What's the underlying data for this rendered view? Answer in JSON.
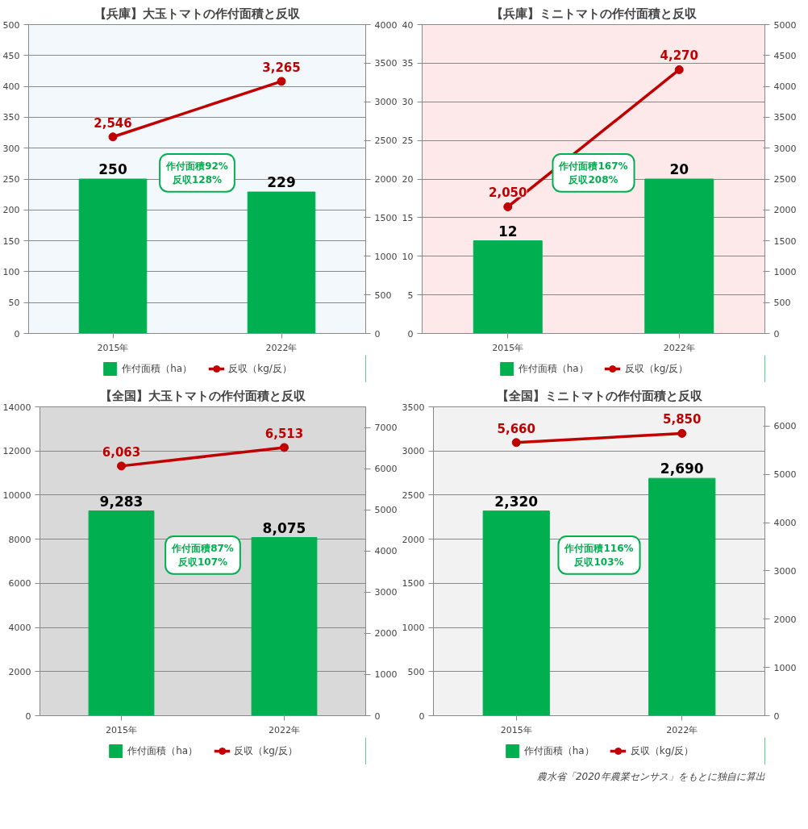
{
  "chart_data": [
    {
      "type": "bar",
      "title": "【兵庫】大玉トマトの作付面積と反収",
      "categories": [
        "2015年",
        "2022年"
      ],
      "series": [
        {
          "name": "作付面積（ha）",
          "color": "#00b050",
          "values": [
            250,
            229
          ],
          "value_labels": [
            "250",
            "229"
          ]
        },
        {
          "name": "反収（kg/反）",
          "type": "line",
          "axis": "y2",
          "color": "#c00000",
          "values": [
            2546,
            3265
          ],
          "value_labels": [
            "2,546",
            "3,265"
          ],
          "marker": "circle"
        }
      ],
      "ylim": [
        0,
        500
      ],
      "yticks": [
        0,
        50,
        100,
        150,
        200,
        250,
        300,
        350,
        400,
        450,
        500
      ],
      "y2lim": [
        0,
        4000
      ],
      "y2ticks": [
        0,
        500,
        1000,
        1500,
        2000,
        2500,
        3000,
        3500,
        4000
      ],
      "grid": "y",
      "legend": "bottom",
      "annotations": [
        "作付面積92%\n反収128%"
      ]
    },
    {
      "type": "bar",
      "title": "【兵庫】ミニトマトの作付面積と反収",
      "categories": [
        "2015年",
        "2022年"
      ],
      "series": [
        {
          "name": "作付面積（ha）",
          "color": "#00b050",
          "values": [
            12,
            20
          ],
          "value_labels": [
            "12",
            "20"
          ]
        },
        {
          "name": "反収（kg/反）",
          "type": "line",
          "axis": "y2",
          "color": "#c00000",
          "values": [
            2050,
            4270
          ],
          "value_labels": [
            "2,050",
            "4,270"
          ],
          "marker": "circle"
        }
      ],
      "ylim": [
        0,
        40
      ],
      "yticks": [
        0,
        5,
        10,
        15,
        20,
        25,
        30,
        35,
        40
      ],
      "y2lim": [
        0,
        5000
      ],
      "y2ticks": [
        0,
        500,
        1000,
        1500,
        2000,
        2500,
        3000,
        3500,
        4000,
        4500,
        5000
      ],
      "grid": "y",
      "legend": "bottom",
      "annotations": [
        "作付面積167%\n反収208%"
      ]
    },
    {
      "type": "bar",
      "title": "【全国】大玉トマトの作付面積と反収",
      "categories": [
        "2015年",
        "2022年"
      ],
      "series": [
        {
          "name": "作付面積（ha）",
          "color": "#00b050",
          "values": [
            9283,
            8075
          ],
          "value_labels": [
            "9,283",
            "8,075"
          ]
        },
        {
          "name": "反収（kg/反）",
          "type": "line",
          "axis": "y2",
          "color": "#c00000",
          "values": [
            6063,
            6513
          ],
          "value_labels": [
            "6,063",
            "6,513"
          ],
          "marker": "circle"
        }
      ],
      "ylim": [
        0,
        14000
      ],
      "yticks": [
        0,
        2000,
        4000,
        6000,
        8000,
        10000,
        12000,
        14000
      ],
      "y2lim": [
        0,
        7500
      ],
      "y2ticks": [
        0,
        1000,
        2000,
        3000,
        4000,
        5000,
        6000,
        7000
      ],
      "grid": "y",
      "legend": "bottom",
      "annotations": [
        "作付面積87%\n反収107%"
      ]
    },
    {
      "type": "bar",
      "title": "【全国】ミニトマトの作付面積と反収",
      "categories": [
        "2015年",
        "2022年"
      ],
      "series": [
        {
          "name": "作付面積（ha）",
          "color": "#00b050",
          "values": [
            2320,
            2690
          ],
          "value_labels": [
            "2,320",
            "2,690"
          ]
        },
        {
          "name": "反収（kg/反）",
          "type": "line",
          "axis": "y2",
          "color": "#c00000",
          "values": [
            5660,
            5850
          ],
          "value_labels": [
            "5,660",
            "5,850"
          ],
          "marker": "circle"
        }
      ],
      "ylim": [
        0,
        3500
      ],
      "yticks": [
        0,
        500,
        1000,
        1500,
        2000,
        2500,
        3000,
        3500
      ],
      "y2lim": [
        0,
        6400
      ],
      "y2ticks": [
        0,
        1000,
        2000,
        3000,
        4000,
        5000,
        6000
      ],
      "grid": "y",
      "legend": "bottom",
      "annotations": [
        "作付面積116%\n反収103%",
        "農水省「2020年農業センサス」をもとに独自に算出"
      ]
    }
  ]
}
